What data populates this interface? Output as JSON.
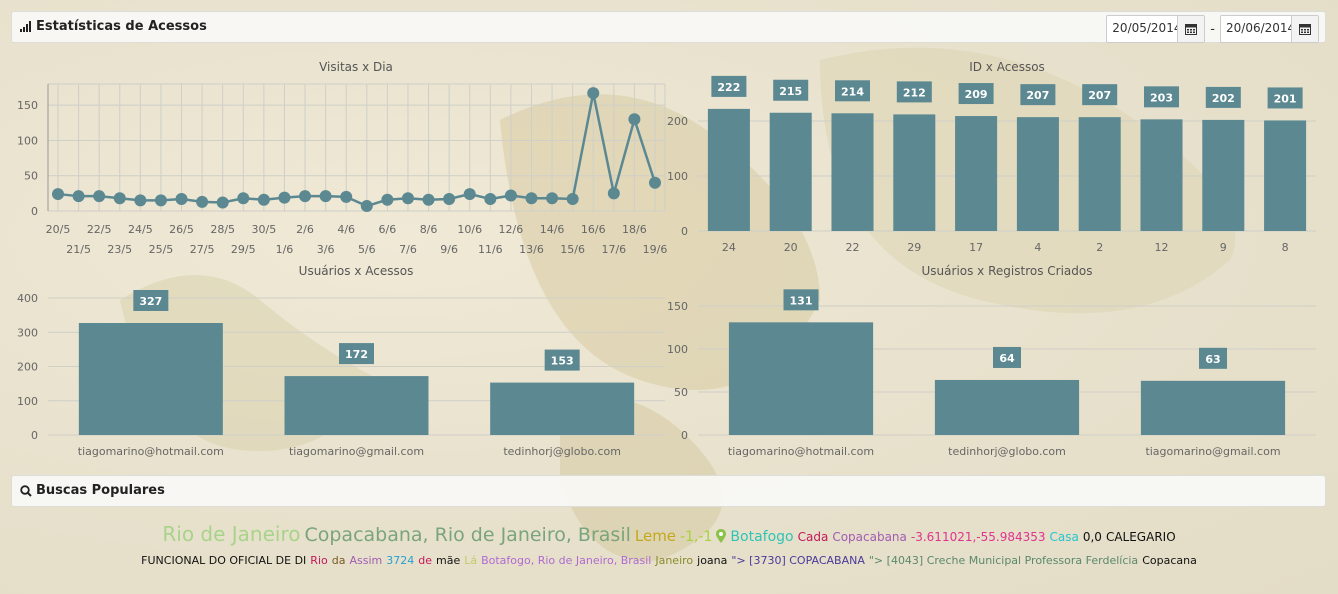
{
  "header": {
    "title": "Estatísticas de Acessos",
    "date_from": "20/05/2014",
    "date_sep": "-",
    "date_to": "20/06/2014"
  },
  "searches_header": {
    "title": "Buscas Populares"
  },
  "colors": {
    "bar": "#5b8891",
    "grid": "#cfcfc8",
    "axis": "#666"
  },
  "chart_data": [
    {
      "type": "line",
      "title": "Visitas x Dia",
      "x": [
        "20/5",
        "21/5",
        "22/5",
        "23/5",
        "24/5",
        "25/5",
        "26/5",
        "27/5",
        "28/5",
        "29/5",
        "30/5",
        "1/6",
        "2/6",
        "3/6",
        "4/6",
        "5/6",
        "6/6",
        "7/6",
        "8/6",
        "9/6",
        "10/6",
        "11/6",
        "12/6",
        "13/6",
        "14/6",
        "15/6",
        "16/6",
        "17/6",
        "18/6",
        "19/6"
      ],
      "values": [
        24,
        21,
        21,
        18,
        15,
        15,
        17,
        13,
        12,
        18,
        16,
        19,
        21,
        21,
        20,
        7,
        16,
        18,
        16,
        17,
        24,
        17,
        22,
        18,
        18,
        17,
        167,
        25,
        130,
        40
      ],
      "ylim": [
        0,
        180
      ],
      "yticks": [
        0,
        50,
        100,
        150
      ],
      "grid": true
    },
    {
      "type": "bar",
      "title": "ID x Acessos",
      "categories": [
        "24",
        "20",
        "22",
        "29",
        "17",
        "4",
        "2",
        "12",
        "9",
        "8"
      ],
      "values": [
        222,
        215,
        214,
        212,
        209,
        207,
        207,
        203,
        202,
        201
      ],
      "ylim": [
        0,
        260
      ],
      "yticks": [
        0,
        100,
        200
      ]
    },
    {
      "type": "bar",
      "title": "Usuários x Acessos",
      "categories": [
        "tiagomarino@hotmail.com",
        "tiagomarino@gmail.com",
        "tedinhorj@globo.com"
      ],
      "values": [
        327,
        172,
        153
      ],
      "ylim": [
        0,
        400
      ],
      "yticks": [
        0,
        100,
        200,
        300,
        400
      ]
    },
    {
      "type": "bar",
      "title": "Usuários x Registros Criados",
      "categories": [
        "tiagomarino@hotmail.com",
        "tedinhorj@globo.com",
        "tiagomarino@gmail.com"
      ],
      "values": [
        131,
        64,
        63
      ],
      "ylim": [
        0,
        150
      ],
      "yticks": [
        0,
        50,
        100,
        150
      ]
    }
  ],
  "tags_line1": [
    {
      "text": "Rio de Janeiro",
      "color": "#a9d38a",
      "size": 20
    },
    {
      "text": "Copacabana, Rio de Janeiro, Brasil",
      "color": "#7aa47c",
      "size": 19
    },
    {
      "text": "Leme",
      "color": "#c4a81c",
      "size": 15
    },
    {
      "text": "-1,-1",
      "color": "#a6d23a",
      "size": 14
    },
    {
      "text": "Botafogo",
      "color": "#2fc4b5",
      "size": 14
    },
    {
      "text": "Cada",
      "color": "#c2185b",
      "size": 12
    },
    {
      "text": "Copacabana",
      "color": "#a25bb0",
      "size": 12
    },
    {
      "text": "-3.611021,-55.984353",
      "color": "#e0338e",
      "size": 12
    },
    {
      "text": "Casa",
      "color": "#27c5d0",
      "size": 12
    },
    {
      "text": "0,0",
      "color": "#111111",
      "size": 12
    },
    {
      "text": "CALEGARIO",
      "color": "#111111",
      "size": 12
    }
  ],
  "tags_line2": [
    {
      "text": "FUNCIONAL DO OFICIAL DE DI",
      "color": "#111111",
      "size": 11
    },
    {
      "text": "Rio",
      "color": "#c2185b",
      "size": 11
    },
    {
      "text": "da",
      "color": "#7a5a22",
      "size": 11
    },
    {
      "text": "Assim",
      "color": "#a25bb0",
      "size": 11
    },
    {
      "text": "3724",
      "color": "#27a0d0",
      "size": 11
    },
    {
      "text": "de",
      "color": "#c2185b",
      "size": 11
    },
    {
      "text": "mãe",
      "color": "#111111",
      "size": 11
    },
    {
      "text": "Lá",
      "color": "#c8c86a",
      "size": 11
    },
    {
      "text": "Botafogo, Rio de Janeiro, Brasil",
      "color": "#b06ad0",
      "size": 11
    },
    {
      "text": "Janeiro",
      "color": "#8a8a2a",
      "size": 11
    },
    {
      "text": "joana",
      "color": "#111111",
      "size": 11
    },
    {
      "text": "\"> [3730] COPACABANA",
      "color": "#4a3a9a",
      "size": 11
    },
    {
      "text": "\"> [4043] Creche Municipal Professora Ferdelícia",
      "color": "#5a8a6a",
      "size": 11
    },
    {
      "text": "Copacana",
      "color": "#111111",
      "size": 11
    }
  ]
}
